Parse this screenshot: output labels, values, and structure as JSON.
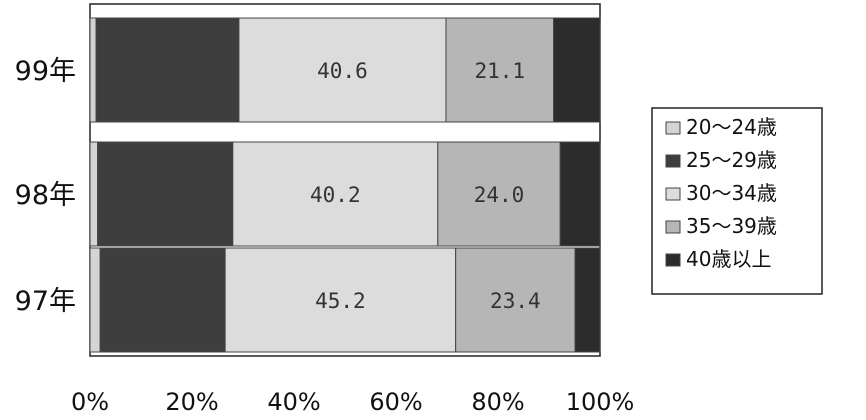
{
  "chart_data": {
    "type": "bar",
    "orientation": "horizontal",
    "stacked": "percent",
    "categories": [
      "99年",
      "98年",
      "97年"
    ],
    "series": [
      {
        "name": "20〜24歳",
        "values": [
          1.2,
          1.5,
          2.0
        ],
        "color": "#d4d4d4"
      },
      {
        "name": "25〜29歳",
        "values": [
          28.0,
          26.5,
          24.5
        ],
        "color": "#3e3e3e"
      },
      {
        "name": "30〜34歳",
        "values": [
          40.6,
          40.2,
          45.2
        ],
        "color": "#dcdcdc"
      },
      {
        "name": "35〜39歳",
        "values": [
          21.1,
          24.0,
          23.4
        ],
        "color": "#b6b6b6"
      },
      {
        "name": "40歳以上",
        "values": [
          9.1,
          7.8,
          4.9
        ],
        "color": "#2c2c2c"
      }
    ],
    "data_labels": [
      {
        "category": "99年",
        "series": "30〜34歳",
        "text": "40.6"
      },
      {
        "category": "99年",
        "series": "35〜39歳",
        "text": "21.1"
      },
      {
        "category": "98年",
        "series": "30〜34歳",
        "text": "40.2"
      },
      {
        "category": "98年",
        "series": "35〜39歳",
        "text": "24.0"
      },
      {
        "category": "97年",
        "series": "30〜34歳",
        "text": "45.2"
      },
      {
        "category": "97年",
        "series": "35〜39歳",
        "text": "23.4"
      }
    ],
    "x_ticks": [
      "0%",
      "20%",
      "40%",
      "60%",
      "80%",
      "100%"
    ],
    "xlim": [
      0,
      100
    ],
    "grid": false,
    "legend_position": "right"
  }
}
